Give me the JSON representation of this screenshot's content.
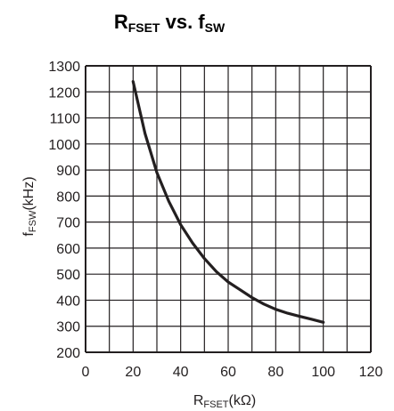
{
  "chart_data": {
    "type": "line",
    "title": {
      "main": "R",
      "main_sub": "FSET",
      "mid": " vs. f",
      "mid_sub": "SW"
    },
    "xlabel": {
      "main": "R",
      "sub": "FSET",
      "unit": "(kΩ)"
    },
    "ylabel": {
      "main": "f",
      "sub": "FSW",
      "unit": "(kHz)"
    },
    "xlim": [
      0,
      120
    ],
    "ylim": [
      200,
      1300
    ],
    "x_ticks": [
      "0",
      "20",
      "40",
      "60",
      "80",
      "100",
      "120"
    ],
    "y_ticks": [
      "200",
      "300",
      "400",
      "500",
      "600",
      "700",
      "800",
      "900",
      "1000",
      "1100",
      "1200",
      "1300"
    ],
    "grid": true,
    "series": [
      {
        "x": [
          20,
          25,
          30,
          35,
          40,
          45,
          50,
          55,
          60,
          65,
          70,
          75,
          80,
          85,
          90,
          95,
          100
        ],
        "y": [
          1240,
          1040,
          890,
          780,
          690,
          620,
          560,
          510,
          470,
          440,
          410,
          385,
          365,
          350,
          338,
          327,
          315
        ]
      }
    ],
    "colors": {
      "line": "#231f20",
      "grid": "#231f20",
      "text": "#231f20"
    }
  }
}
